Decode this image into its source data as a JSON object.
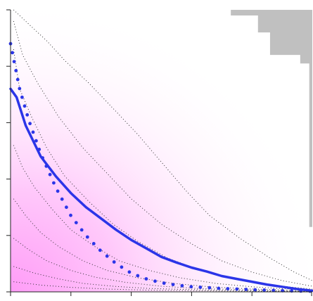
{
  "chart_data": {
    "type": "line",
    "title": "",
    "xlabel": "",
    "ylabel": "",
    "xlim": [
      0,
      5
    ],
    "ylim": [
      0,
      5
    ],
    "x_ticks": [
      0,
      1,
      2,
      3,
      4,
      5
    ],
    "y_ticks": [
      0,
      1,
      2,
      3,
      4,
      5
    ],
    "grid": false,
    "legend": "none",
    "colors": {
      "line": "#2b35e8",
      "heat_high": "#ff9cf7",
      "heat_low": "#ffffff",
      "mask": "#c0c0c0",
      "contour": "#333333"
    },
    "series": [
      {
        "style": "solid",
        "x": [
          0.0,
          0.1,
          0.25,
          0.5,
          0.75,
          1.0,
          1.25,
          1.5,
          1.75,
          2.0,
          2.25,
          2.5,
          2.75,
          3.0,
          3.25,
          3.5,
          3.75,
          4.0,
          4.25,
          4.5,
          4.75,
          5.0
        ],
        "y": [
          3.6,
          3.45,
          2.95,
          2.4,
          2.05,
          1.75,
          1.5,
          1.3,
          1.1,
          0.92,
          0.77,
          0.62,
          0.52,
          0.43,
          0.36,
          0.28,
          0.23,
          0.18,
          0.13,
          0.09,
          0.05,
          0.02
        ]
      },
      {
        "style": "dotted",
        "x": [
          0.0,
          0.15,
          0.3,
          0.5,
          0.75,
          1.0,
          1.25,
          1.5,
          1.75,
          2.0,
          2.25,
          2.5,
          2.75,
          3.0,
          3.5,
          4.0,
          4.5,
          5.0
        ],
        "y": [
          4.4,
          3.6,
          3.05,
          2.45,
          1.85,
          1.35,
          1.0,
          0.72,
          0.5,
          0.33,
          0.23,
          0.16,
          0.12,
          0.09,
          0.06,
          0.04,
          0.02,
          0.01
        ]
      }
    ],
    "contours": [
      {
        "x": [
          0.05,
          0.3,
          0.6,
          0.9,
          1.3,
          1.7,
          2.1,
          2.5,
          2.9,
          3.3,
          3.8,
          4.3,
          4.7,
          5.0
        ],
        "y": [
          5.0,
          4.75,
          4.45,
          4.1,
          3.7,
          3.25,
          2.8,
          2.3,
          1.8,
          1.35,
          0.95,
          0.6,
          0.35,
          0.2
        ]
      },
      {
        "x": [
          0.05,
          0.2,
          0.45,
          0.8,
          1.2,
          1.6,
          2.0,
          2.5,
          3.0,
          3.5,
          4.0,
          4.5,
          5.0
        ],
        "y": [
          4.8,
          4.2,
          3.7,
          3.1,
          2.55,
          2.1,
          1.65,
          1.2,
          0.85,
          0.55,
          0.35,
          0.2,
          0.1
        ]
      },
      {
        "x": [
          0.05,
          0.15,
          0.35,
          0.6,
          0.9,
          1.3,
          1.7,
          2.1,
          2.6,
          3.1,
          3.6,
          4.1,
          4.6,
          5.0
        ],
        "y": [
          4.3,
          3.6,
          3.1,
          2.55,
          2.05,
          1.6,
          1.2,
          0.9,
          0.6,
          0.4,
          0.26,
          0.16,
          0.09,
          0.05
        ]
      },
      {
        "x": [
          0.05,
          0.2,
          0.4,
          0.7,
          1.0,
          1.4,
          1.8,
          2.3,
          2.8,
          3.4,
          4.0,
          4.6,
          5.0
        ],
        "y": [
          2.6,
          2.2,
          1.85,
          1.45,
          1.1,
          0.8,
          0.55,
          0.38,
          0.25,
          0.15,
          0.09,
          0.05,
          0.03
        ]
      },
      {
        "x": [
          0.05,
          0.25,
          0.5,
          0.8,
          1.2,
          1.6,
          2.1,
          2.7,
          3.3,
          4.0,
          4.6,
          5.0
        ],
        "y": [
          1.65,
          1.35,
          1.05,
          0.8,
          0.55,
          0.38,
          0.25,
          0.15,
          0.09,
          0.05,
          0.03,
          0.02
        ]
      },
      {
        "x": [
          0.05,
          0.3,
          0.6,
          1.0,
          1.4,
          1.9,
          2.5,
          3.1,
          3.8,
          4.4,
          5.0
        ],
        "y": [
          0.95,
          0.75,
          0.55,
          0.38,
          0.26,
          0.17,
          0.1,
          0.06,
          0.04,
          0.02,
          0.01
        ]
      },
      {
        "x": [
          0.05,
          0.4,
          0.8,
          1.2,
          1.7,
          2.3,
          3.0,
          3.8,
          4.5,
          5.0
        ],
        "y": [
          0.45,
          0.33,
          0.23,
          0.15,
          0.1,
          0.06,
          0.04,
          0.02,
          0.01,
          0.01
        ]
      },
      {
        "x": [
          0.05,
          0.5,
          1.0,
          1.6,
          2.3,
          3.1,
          4.0,
          5.0
        ],
        "y": [
          0.18,
          0.12,
          0.08,
          0.05,
          0.03,
          0.02,
          0.01,
          0.005
        ]
      }
    ],
    "masked_region": {
      "x": [
        3.65,
        3.65,
        4.1,
        4.1,
        4.3,
        4.3,
        4.8,
        4.8,
        4.95,
        4.95,
        5.0,
        5.0
      ],
      "y": [
        5.0,
        4.9,
        4.9,
        4.6,
        4.6,
        4.2,
        4.2,
        4.05,
        4.05,
        1.15,
        1.15,
        5.0
      ]
    }
  }
}
